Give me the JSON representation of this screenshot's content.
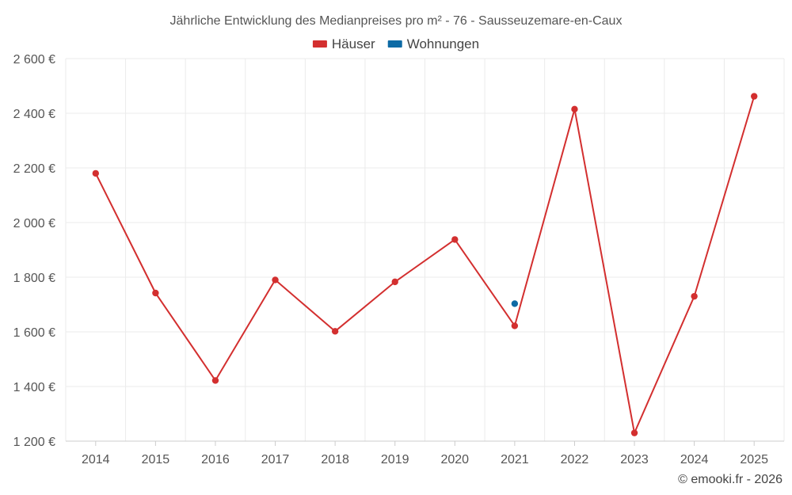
{
  "chart_data": {
    "type": "line",
    "title": "Jährliche Entwicklung des Medianpreises pro m² - 76 - Sausseuzemare-en-Caux",
    "categories": [
      "2014",
      "2015",
      "2016",
      "2017",
      "2018",
      "2019",
      "2020",
      "2021",
      "2022",
      "2023",
      "2024",
      "2025"
    ],
    "series": [
      {
        "name": "Häuser",
        "color": "#d32f2f",
        "values": [
          2180,
          1742,
          1422,
          1790,
          1602,
          1783,
          1938,
          1622,
          2415,
          1230,
          1730,
          2462
        ]
      },
      {
        "name": "Wohnungen",
        "color": "#0d6aa5",
        "values": [
          null,
          null,
          null,
          null,
          null,
          null,
          null,
          1703,
          null,
          null,
          null,
          null
        ]
      }
    ],
    "ylim": [
      1200,
      2600
    ],
    "yticks": [
      1200,
      1400,
      1600,
      1800,
      2000,
      2200,
      2400,
      2600
    ],
    "ytick_labels": [
      "1 200 €",
      "1 400 €",
      "1 600 €",
      "1 800 €",
      "2 000 €",
      "2 200 €",
      "2 400 €",
      "2 600 €"
    ],
    "xlabel": "",
    "ylabel": "",
    "grid": true,
    "legend_position": "top-center"
  },
  "credit": "© emooki.fr - 2026"
}
